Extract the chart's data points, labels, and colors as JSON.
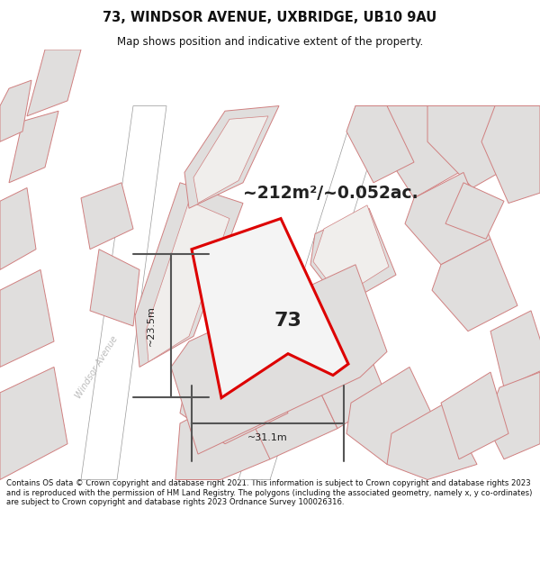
{
  "title_line1": "73, WINDSOR AVENUE, UXBRIDGE, UB10 9AU",
  "title_line2": "Map shows position and indicative extent of the property.",
  "area_text": "~212m²/~0.052ac.",
  "property_number": "73",
  "dim_width": "~31.1m",
  "dim_height": "~23.5m",
  "street_label": "Windsor Avenue",
  "footer_text": "Contains OS data © Crown copyright and database right 2021. This information is subject to Crown copyright and database rights 2023 and is reproduced with the permission of HM Land Registry. The polygons (including the associated geometry, namely x, y co-ordinates) are subject to Crown copyright and database rights 2023 Ordnance Survey 100026316.",
  "bg_color": "#ffffff",
  "map_bg": "#f2f0ef",
  "road_fill": "#ffffff",
  "block_fill": "#e0dedd",
  "block_edge": "#d08080",
  "red_line_color": "#dd0000",
  "gray_dim_color": "#555555",
  "street_color": "#bbbbbb",
  "text_color": "#222222",
  "footer_color": "#111111",
  "title_color": "#111111",
  "prop_fill": "#e8e8e8",
  "prop_inner_fill": "#f4f4f4"
}
